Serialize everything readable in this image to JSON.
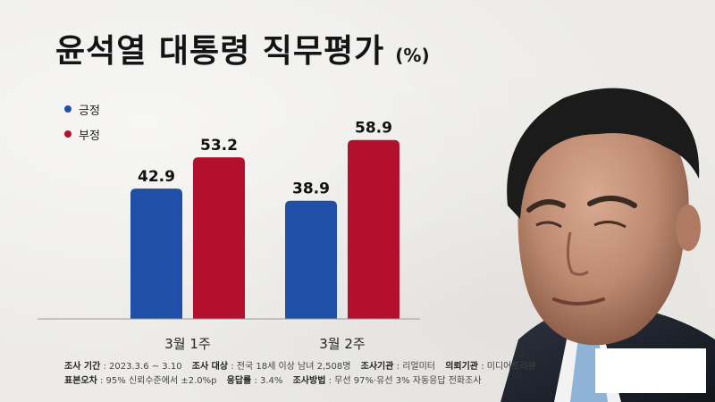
{
  "title": "윤석열 대통령 직무평가",
  "title_unit": "(%)",
  "legend": [
    {
      "label": "긍정",
      "color": "#1f4fa6"
    },
    {
      "label": "부정",
      "color": "#b3102e"
    }
  ],
  "chart_data": {
    "type": "bar",
    "title": "윤석열 대통령 직무평가",
    "categories": [
      "3월 1주",
      "3월 2주"
    ],
    "series": [
      {
        "name": "긍정",
        "values": [
          42.9,
          38.9
        ],
        "color": "#1f4fa6"
      },
      {
        "name": "부정",
        "values": [
          53.2,
          58.9
        ],
        "color": "#b3102e"
      }
    ],
    "unit": "%",
    "grid": false,
    "legend_position": "top-left"
  },
  "footer": {
    "period_label": "조사 기간",
    "period_value": "2023.3.6 ~ 3.10",
    "target_label": "조사 대상",
    "target_value": "전국 18세 이상 남녀 2,508명",
    "org_label": "조사기관",
    "org_value": "리얼미터",
    "client_label": "의뢰기관",
    "client_value": "미디어트리뷴",
    "error_label": "표본오차",
    "error_value": "95% 신뢰수준에서 ±2.0%p",
    "response_label": "응답률",
    "response_value": "3.4%",
    "method_label": "조사방법",
    "method_value": "무선 97%·유선 3% 자동응답 전화조사"
  }
}
